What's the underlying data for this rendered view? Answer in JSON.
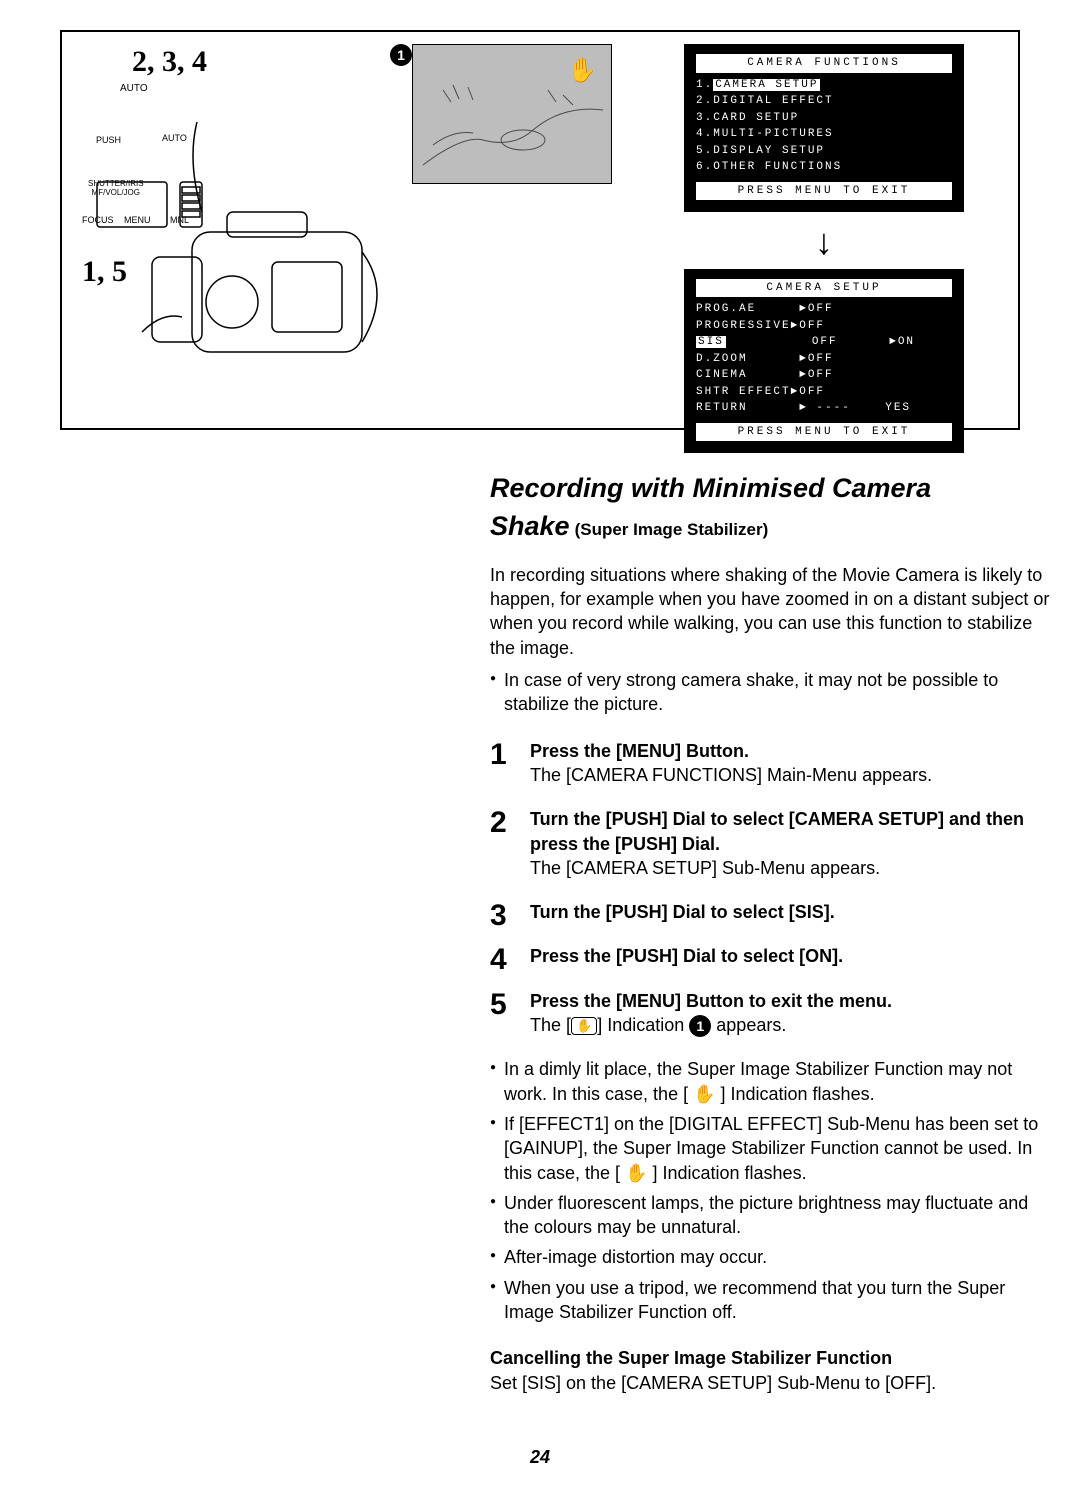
{
  "labels": {
    "top_left_a": "2, 3, 4",
    "top_left_b": "1, 5",
    "circle1": "1"
  },
  "controls": {
    "auto_top": "AUTO",
    "push": "PUSH",
    "auto_side": "AUTO",
    "shutter": "SHUTTER/IRIS\nMF/VOL/JOG",
    "focus": "FOCUS",
    "menu": "MENU",
    "mnl": "MNL"
  },
  "menu1": {
    "title": "CAMERA FUNCTIONS",
    "items": [
      "1.CAMERA SETUP",
      "2.DIGITAL EFFECT",
      "3.CARD SETUP",
      "4.MULTI-PICTURES",
      "5.DISPLAY SETUP",
      "6.OTHER FUNCTIONS"
    ],
    "footer": "PRESS MENU TO EXIT"
  },
  "menu2": {
    "title": "CAMERA SETUP",
    "rows": [
      "PROG.AE     ►OFF",
      "PROGRESSIVE►OFF",
      "SIS          OFF      ►ON",
      "D.ZOOM      ►OFF",
      "CINEMA      ►OFF",
      "SHTR EFFECT►OFF",
      "RETURN      ► ----    YES"
    ],
    "hl_index": 2,
    "footer": "PRESS MENU TO EXIT"
  },
  "heading": {
    "line1": "Recording with Minimised Camera",
    "line2": "Shake",
    "paren": "(Super Image Stabilizer)"
  },
  "intro": "In recording situations where shaking of the Movie Camera is likely to happen, for example when you have zoomed in on a distant subject or when you record while walking, you can use this function to stabilize the image.",
  "intro_bullets": [
    "In case of very strong camera shake, it may not be possible to stabilize the picture."
  ],
  "steps": [
    {
      "head": "Press the [MENU] Button.",
      "sub": "The [CAMERA FUNCTIONS] Main-Menu appears."
    },
    {
      "head": "Turn the [PUSH] Dial to select [CAMERA SETUP] and then press the [PUSH] Dial.",
      "sub": "The [CAMERA SETUP] Sub-Menu appears."
    },
    {
      "head": "Turn the [PUSH] Dial to select [SIS].",
      "sub": ""
    },
    {
      "head": "Press the [PUSH] Dial to select [ON].",
      "sub": ""
    },
    {
      "head": "Press the [MENU] Button to exit the menu.",
      "sub_prefix": "The [",
      "sub_icon": "✋",
      "sub_mid": "] Indication ",
      "sub_circle": "1",
      "sub_suffix": " appears."
    }
  ],
  "notes": [
    "In a dimly lit place, the Super Image Stabilizer Function may not work. In this case, the [ ✋ ] Indication flashes.",
    "If [EFFECT1] on the [DIGITAL EFFECT] Sub-Menu has been set to [GAINUP], the Super Image Stabilizer Function cannot be used. In this case, the [ ✋ ] Indication flashes.",
    "Under fluorescent lamps, the picture brightness may fluctuate and the colours may be unnatural.",
    "After-image distortion may occur.",
    "When you use a tripod, we recommend that you turn the Super Image Stabilizer Function off."
  ],
  "cancel": {
    "head": "Cancelling the Super Image Stabilizer Function",
    "body": "Set [SIS] on the [CAMERA SETUP] Sub-Menu to [OFF]."
  },
  "page": "24"
}
